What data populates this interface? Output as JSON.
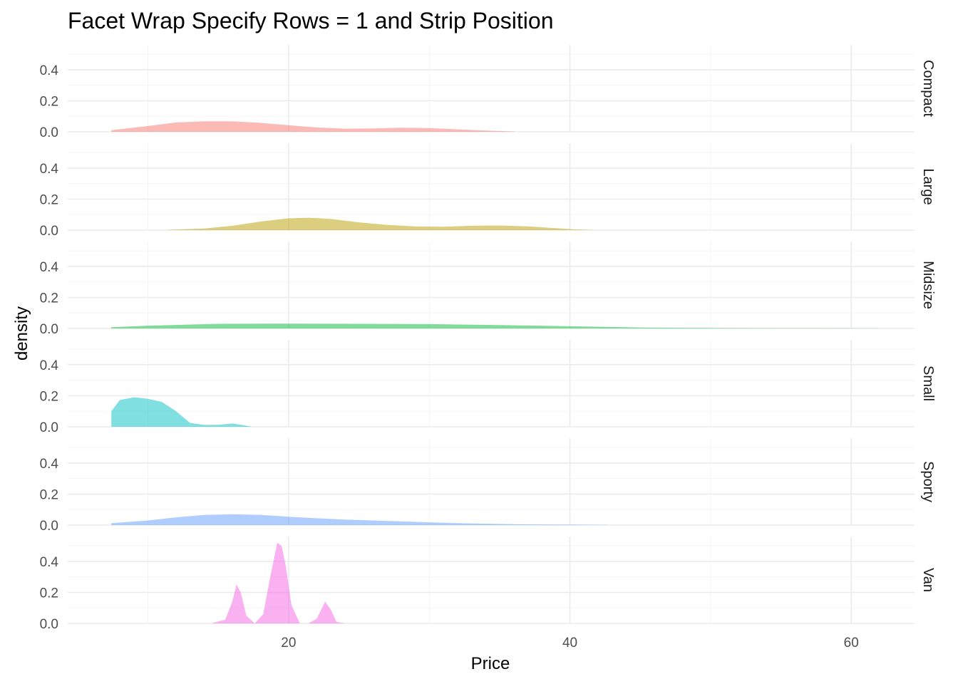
{
  "chart_data": {
    "type": "area",
    "title": "Facet Wrap Specify Rows = 1 and Strip Position",
    "xlabel": "Price",
    "ylabel": "density",
    "xlim": [
      4.3,
      64.5
    ],
    "ylim": [
      0,
      0.56
    ],
    "x_ticks": [
      20,
      40,
      60
    ],
    "y_ticks": [
      0.0,
      0.2,
      0.4
    ],
    "y_tick_labels": [
      "0.0",
      "0.2",
      "0.4"
    ],
    "strip_position": "right",
    "grid": true,
    "legend": "none",
    "fill_alpha": 0.5,
    "series": [
      {
        "name": "Compact",
        "color": "#F8766D",
        "x": [
          7.4,
          10,
          12,
          14,
          16,
          18,
          20,
          22,
          24,
          26,
          28,
          30,
          32,
          34,
          36.1
        ],
        "values": [
          0.01,
          0.037,
          0.06,
          0.068,
          0.068,
          0.058,
          0.042,
          0.028,
          0.02,
          0.022,
          0.026,
          0.024,
          0.016,
          0.008,
          0.002
        ]
      },
      {
        "name": "Large",
        "color": "#B79F00",
        "x": [
          11.4,
          14,
          16,
          18,
          20,
          21.5,
          23,
          25,
          27,
          29,
          31,
          33,
          35,
          37,
          39,
          40.5,
          41.6
        ],
        "values": [
          0.002,
          0.01,
          0.028,
          0.055,
          0.076,
          0.08,
          0.072,
          0.05,
          0.034,
          0.024,
          0.022,
          0.028,
          0.03,
          0.024,
          0.013,
          0.004,
          0.001
        ]
      },
      {
        "name": "Midsize",
        "color": "#00BA38",
        "x": [
          7.4,
          10,
          15,
          20,
          25,
          30,
          35,
          40,
          45,
          50,
          55,
          61.9
        ],
        "values": [
          0.008,
          0.018,
          0.03,
          0.031,
          0.03,
          0.028,
          0.022,
          0.014,
          0.006,
          0.003,
          0.002,
          0.001
        ]
      },
      {
        "name": "Small",
        "color": "#00BFC4",
        "x": [
          7.4,
          8,
          9,
          10,
          11,
          12,
          13,
          14,
          15,
          16,
          16.8,
          17.3
        ],
        "values": [
          0.1,
          0.172,
          0.19,
          0.18,
          0.16,
          0.1,
          0.025,
          0.012,
          0.013,
          0.021,
          0.01,
          0.002
        ]
      },
      {
        "name": "Sporty",
        "color": "#619CFF",
        "x": [
          7.4,
          10,
          12,
          14,
          16,
          18,
          20,
          22,
          24,
          26,
          28,
          30,
          32,
          34,
          36,
          38,
          40,
          42.7
        ],
        "values": [
          0.013,
          0.03,
          0.05,
          0.065,
          0.07,
          0.066,
          0.054,
          0.044,
          0.036,
          0.03,
          0.024,
          0.018,
          0.013,
          0.009,
          0.006,
          0.004,
          0.003,
          0.001
        ]
      },
      {
        "name": "Van",
        "color": "#F564E3",
        "x": [
          14.5,
          15.5,
          16,
          16.3,
          16.6,
          17,
          17.6,
          18.2,
          18.7,
          19.2,
          19.5,
          19.8,
          20.2,
          20.8,
          21.4,
          22,
          22.6,
          23,
          23.4,
          24
        ],
        "values": [
          0.0,
          0.025,
          0.14,
          0.25,
          0.2,
          0.05,
          0.0,
          0.06,
          0.3,
          0.52,
          0.5,
          0.37,
          0.12,
          0.0,
          0.0,
          0.03,
          0.14,
          0.09,
          0.01,
          0.0
        ]
      }
    ]
  }
}
